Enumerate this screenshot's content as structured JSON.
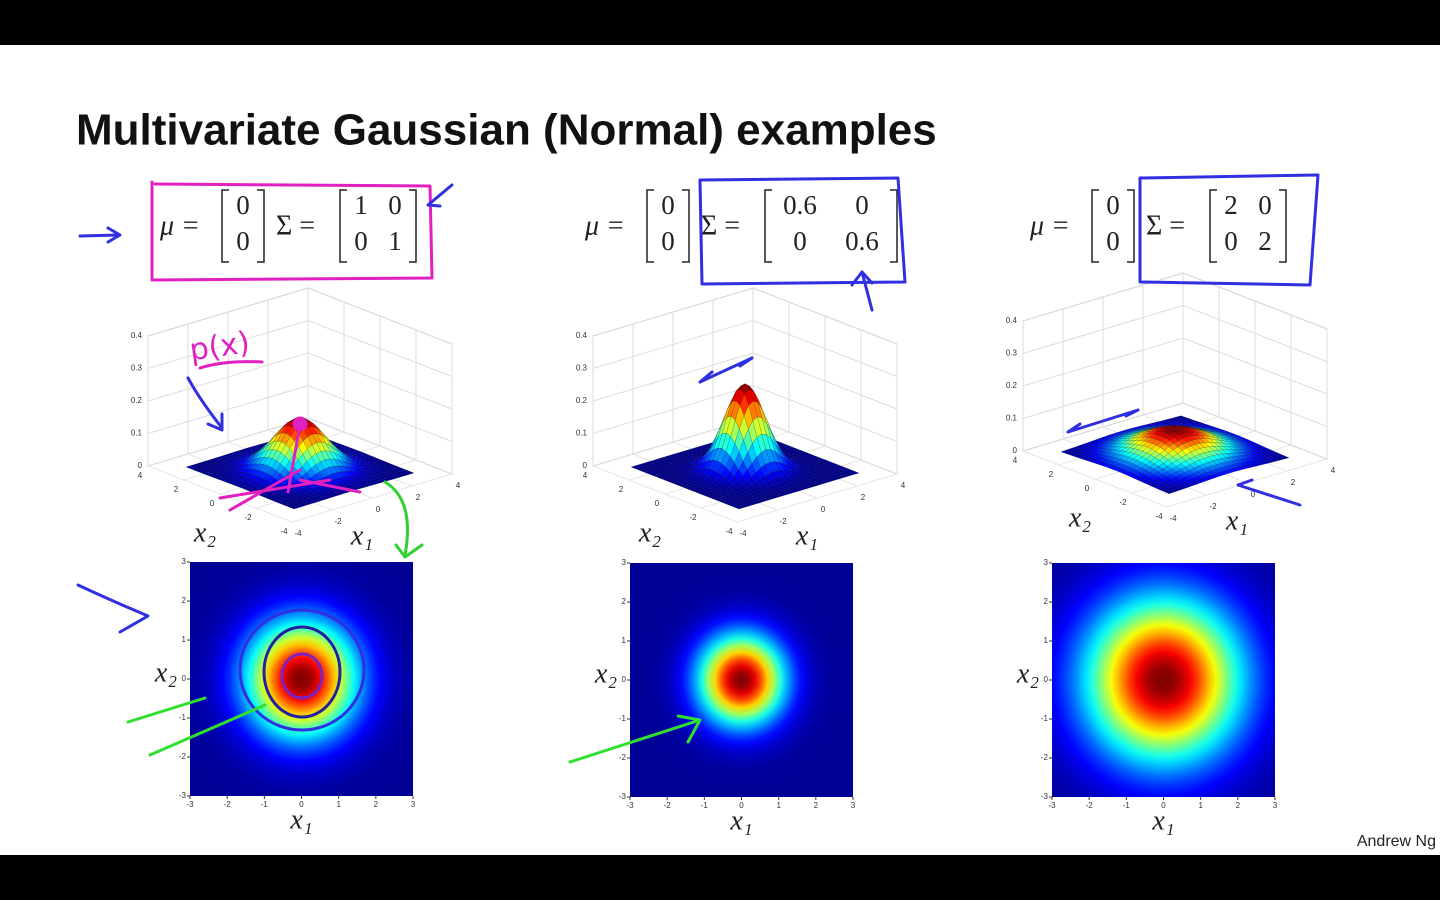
{
  "header": {
    "title": "Multivariate Gaussian (Normal) examples"
  },
  "panels": [
    {
      "mu_label": "μ =",
      "mu": [
        0,
        0
      ],
      "sigma_label": "Σ =",
      "sigma": [
        [
          1,
          0
        ],
        [
          0,
          1
        ]
      ],
      "surface": {
        "z_ticks": [
          0,
          0.1,
          0.2,
          0.3,
          0.4
        ],
        "x1_ticks": [
          -4,
          -2,
          0,
          2,
          4
        ],
        "x2_ticks": [
          -4,
          -2,
          0,
          2,
          4
        ],
        "x1_label": "x₁",
        "x2_label": "x₂"
      },
      "heatmap": {
        "x1_ticks": [
          -3,
          -2,
          -1,
          0,
          1,
          2,
          3
        ],
        "x2_ticks": [
          -3,
          -2,
          -1,
          0,
          1,
          2,
          3
        ],
        "x1_label": "x₁",
        "x2_label": "x₂"
      }
    },
    {
      "mu_label": "μ =",
      "mu": [
        0,
        0
      ],
      "sigma_label": "Σ =",
      "sigma": [
        [
          0.6,
          0
        ],
        [
          0,
          0.6
        ]
      ],
      "surface": {
        "z_ticks": [
          0,
          0.1,
          0.2,
          0.3,
          0.4
        ],
        "x1_ticks": [
          -4,
          -2,
          0,
          2,
          4
        ],
        "x2_ticks": [
          -4,
          -2,
          0,
          2,
          4
        ],
        "x1_label": "x₁",
        "x2_label": "x₂"
      },
      "heatmap": {
        "x1_ticks": [
          -3,
          -2,
          -1,
          0,
          1,
          2,
          3
        ],
        "x2_ticks": [
          -3,
          -2,
          -1,
          0,
          1,
          2,
          3
        ],
        "x1_label": "x₁",
        "x2_label": "x₂"
      }
    },
    {
      "mu_label": "μ =",
      "mu": [
        0,
        0
      ],
      "sigma_label": "Σ =",
      "sigma": [
        [
          2,
          0
        ],
        [
          0,
          2
        ]
      ],
      "surface": {
        "z_ticks": [
          0,
          0.1,
          0.2,
          0.3,
          0.4
        ],
        "x1_ticks": [
          -4,
          -2,
          0,
          2,
          4
        ],
        "x2_ticks": [
          -4,
          -2,
          0,
          2,
          4
        ],
        "x1_label": "x₁",
        "x2_label": "x₂"
      },
      "heatmap": {
        "x1_ticks": [
          -3,
          -2,
          -1,
          0,
          1,
          2,
          3
        ],
        "x2_ticks": [
          -3,
          -2,
          -1,
          0,
          1,
          2,
          3
        ],
        "x1_label": "x₁",
        "x2_label": "x₂"
      }
    }
  ],
  "annotation": "p(x)",
  "footer": "Andrew Ng"
}
